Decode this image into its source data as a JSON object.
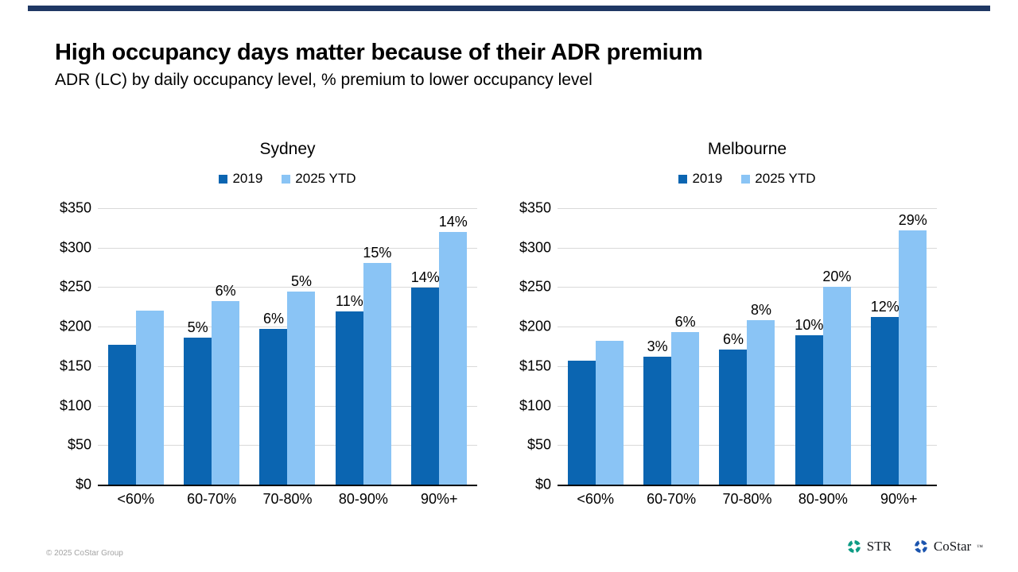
{
  "slide": {
    "title": "High occupancy days matter because of their ADR premium",
    "subtitle": "ADR (LC) by daily occupancy level, % premium to lower occupancy level",
    "copyright": "© 2025 CoStar Group",
    "accent_bar_color": "#1f3864"
  },
  "footer_logos": {
    "str_label": "STR",
    "costar_label": "CoStar",
    "costar_trademark": "™",
    "str_icon_color": "#0d9b84",
    "costar_icon_color": "#1b54ae"
  },
  "chart_data": [
    {
      "type": "bar",
      "title": "Sydney",
      "categories": [
        "<60%",
        "60-70%",
        "70-80%",
        "80-90%",
        "90%+"
      ],
      "series": [
        {
          "name": "2019",
          "color": "#0b65b1",
          "values": [
            177,
            186,
            197,
            219,
            249
          ],
          "bar_labels": [
            "",
            "5%",
            "6%",
            "11%",
            "14%"
          ]
        },
        {
          "name": "2025 YTD",
          "color": "#8ac4f5",
          "values": [
            220,
            232,
            244,
            281,
            320
          ],
          "bar_labels": [
            "",
            "6%",
            "5%",
            "15%",
            "14%"
          ]
        }
      ],
      "yticks": [
        {
          "label": "$350",
          "value": 350
        },
        {
          "label": "$300",
          "value": 300
        },
        {
          "label": "$250",
          "value": 250
        },
        {
          "label": "$200",
          "value": 200
        },
        {
          "label": "$150",
          "value": 150
        },
        {
          "label": "$100",
          "value": 100
        },
        {
          "label": "$50",
          "value": 50
        },
        {
          "label": "$0",
          "value": 0
        }
      ],
      "ylim": [
        0,
        350
      ],
      "grid": true,
      "legend_position": "top",
      "gridline_color": "#d9d9d9"
    },
    {
      "type": "bar",
      "title": "Melbourne",
      "categories": [
        "<60%",
        "60-70%",
        "70-80%",
        "80-90%",
        "90%+"
      ],
      "series": [
        {
          "name": "2019",
          "color": "#0b65b1",
          "values": [
            157,
            162,
            171,
            189,
            212
          ],
          "bar_labels": [
            "",
            "3%",
            "6%",
            "10%",
            "12%"
          ]
        },
        {
          "name": "2025 YTD",
          "color": "#8ac4f5",
          "values": [
            182,
            193,
            208,
            250,
            322
          ],
          "bar_labels": [
            "",
            "6%",
            "8%",
            "20%",
            "29%"
          ]
        }
      ],
      "yticks": [
        {
          "label": "$350",
          "value": 350
        },
        {
          "label": "$300",
          "value": 300
        },
        {
          "label": "$250",
          "value": 250
        },
        {
          "label": "$200",
          "value": 200
        },
        {
          "label": "$150",
          "value": 150
        },
        {
          "label": "$100",
          "value": 100
        },
        {
          "label": "$50",
          "value": 50
        },
        {
          "label": "$0",
          "value": 0
        }
      ],
      "ylim": [
        0,
        350
      ],
      "grid": true,
      "legend_position": "top",
      "gridline_color": "#d9d9d9"
    }
  ]
}
